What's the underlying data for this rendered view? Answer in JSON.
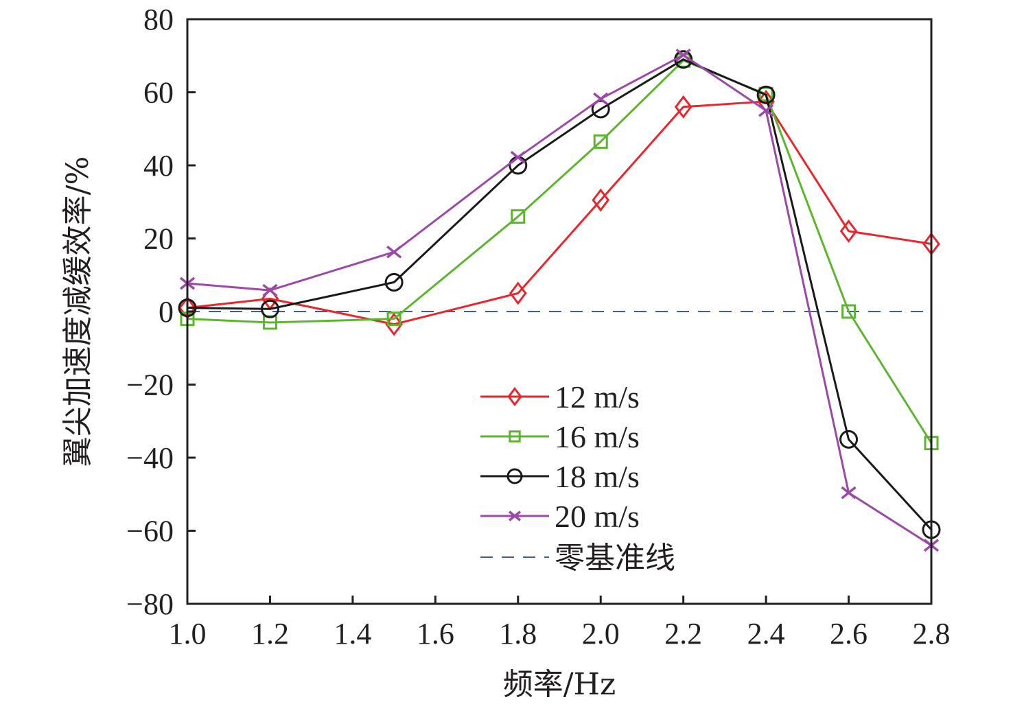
{
  "chart_data": {
    "type": "line",
    "title": "",
    "xlabel": "频率/Hz",
    "ylabel": "翼尖加速度减缓效率/%",
    "xlim": [
      1.0,
      2.8
    ],
    "ylim": [
      -80,
      80
    ],
    "xticks": [
      1.0,
      1.2,
      1.4,
      1.6,
      1.8,
      2.0,
      2.2,
      2.4,
      2.6,
      2.8
    ],
    "xtick_labels": [
      "1.0",
      "1.2",
      "1.4",
      "1.6",
      "1.8",
      "2.0",
      "2.2",
      "2.4",
      "2.6",
      "2.8"
    ],
    "yticks": [
      80,
      60,
      40,
      20,
      0,
      -20,
      -40,
      -60,
      -80
    ],
    "ytick_labels": [
      "80",
      "60",
      "40",
      "20",
      "0",
      "−20",
      "−40",
      "−60",
      "−80"
    ],
    "grid": false,
    "legend_position": "lower-center",
    "x": [
      1.0,
      1.2,
      1.5,
      1.8,
      2.0,
      2.2,
      2.4,
      2.6,
      2.8
    ],
    "series": [
      {
        "name": "12 m/s",
        "color": "#e8262b",
        "marker": "diamond",
        "values": [
          1.0,
          3.5,
          -3.5,
          5.0,
          30.5,
          56.0,
          57.5,
          22.0,
          18.5
        ]
      },
      {
        "name": "16 m/s",
        "color": "#5bb62e",
        "marker": "square",
        "values": [
          -2.0,
          -3.0,
          -2.0,
          26.0,
          46.5,
          68.7,
          59.5,
          0.0,
          -36.0
        ]
      },
      {
        "name": "18 m/s",
        "color": "#1a1a1a",
        "marker": "circle",
        "values": [
          1.0,
          0.7,
          8.0,
          40.0,
          55.4,
          69.0,
          59.3,
          -35.0,
          -59.7
        ]
      },
      {
        "name": "20 m/s",
        "color": "#9b48a8",
        "marker": "cross",
        "values": [
          7.7,
          5.8,
          16.3,
          42.2,
          58.2,
          70.2,
          55.0,
          -49.6,
          -64.0
        ]
      }
    ],
    "reference_line": {
      "name": "零基准线",
      "y": 0,
      "color": "#3e5ba8",
      "style": "dashed"
    }
  }
}
